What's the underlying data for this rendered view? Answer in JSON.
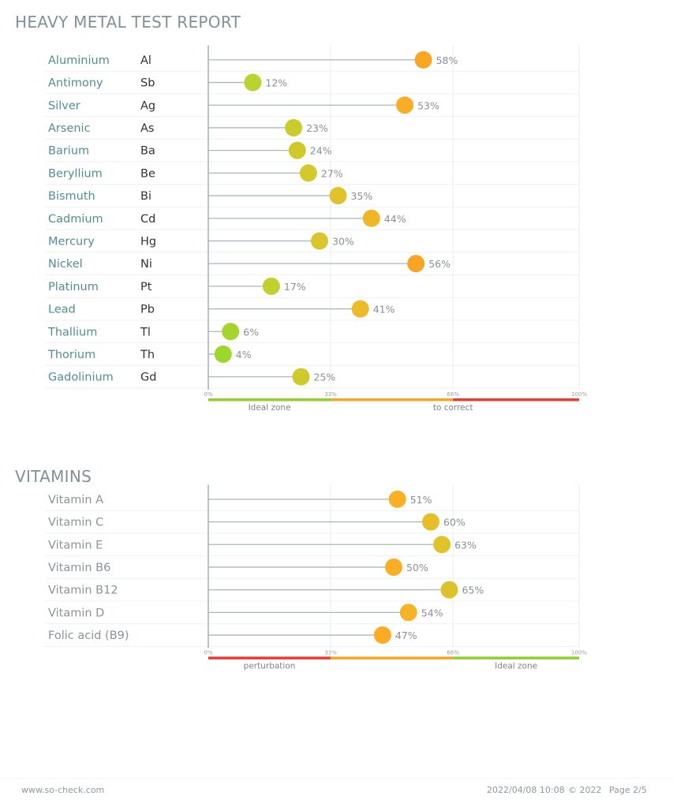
{
  "chart_data": [
    {
      "type": "lollipop",
      "title": "HEAVY METAL TEST REPORT",
      "xlim": [
        0,
        100
      ],
      "ticks": [
        "0%",
        "33%",
        "66%",
        "100%"
      ],
      "zones": [
        {
          "label": "Ideal zone",
          "from": 0,
          "to": 33,
          "color": "#8ed12b"
        },
        {
          "label": "",
          "from": 33,
          "to": 66,
          "color": "#f6a623"
        },
        {
          "label": "to correct",
          "from": 66,
          "to": 100,
          "color": "#ee3a34"
        }
      ],
      "zone_labels": [
        {
          "text": "Ideal zone",
          "at": 16.5
        },
        {
          "text": "to correct",
          "at": 66
        }
      ],
      "rows": [
        {
          "name": "Aluminium",
          "symbol": "Al",
          "value": 58,
          "label": "58%",
          "color": "#f9a623"
        },
        {
          "name": "Antimony",
          "symbol": "Sb",
          "value": 12,
          "label": "12%",
          "color": "#bcd22e"
        },
        {
          "name": "Silver",
          "symbol": "Ag",
          "value": 53,
          "label": "53%",
          "color": "#f9ad25"
        },
        {
          "name": "Arsenic",
          "symbol": "As",
          "value": 23,
          "label": "23%",
          "color": "#cccb2c"
        },
        {
          "name": "Barium",
          "symbol": "Ba",
          "value": 24,
          "label": "24%",
          "color": "#cfca2c"
        },
        {
          "name": "Beryllium",
          "symbol": "Be",
          "value": 27,
          "label": "27%",
          "color": "#d4c92c"
        },
        {
          "name": "Bismuth",
          "symbol": "Bi",
          "value": 35,
          "label": "35%",
          "color": "#e2c22a"
        },
        {
          "name": "Cadmium",
          "symbol": "Cd",
          "value": 44,
          "label": "44%",
          "color": "#f0b626"
        },
        {
          "name": "Mercury",
          "symbol": "Hg",
          "value": 30,
          "label": "30%",
          "color": "#d9c62c"
        },
        {
          "name": "Nickel",
          "symbol": "Ni",
          "value": 56,
          "label": "56%",
          "color": "#fba324"
        },
        {
          "name": "Platinum",
          "symbol": "Pt",
          "value": 17,
          "label": "17%",
          "color": "#c2d02e"
        },
        {
          "name": "Lead",
          "symbol": "Pb",
          "value": 41,
          "label": "41%",
          "color": "#ecbc28"
        },
        {
          "name": "Thallium",
          "symbol": "Tl",
          "value": 6,
          "label": "6%",
          "color": "#a5d42c"
        },
        {
          "name": "Thorium",
          "symbol": "Th",
          "value": 4,
          "label": "4%",
          "color": "#9ed62b"
        },
        {
          "name": "Gadolinium",
          "symbol": "Gd",
          "value": 25,
          "label": "25%",
          "color": "#cfca2c"
        }
      ]
    },
    {
      "type": "lollipop",
      "title": "VITAMINS",
      "xlim": [
        0,
        100
      ],
      "ticks": [
        "0%",
        "33%",
        "66%",
        "100%"
      ],
      "zones": [
        {
          "label": "perturbation",
          "from": 0,
          "to": 33,
          "color": "#ee3a34"
        },
        {
          "label": "",
          "from": 33,
          "to": 66,
          "color": "#f6a623"
        },
        {
          "label": "Ideal zone",
          "from": 66,
          "to": 100,
          "color": "#8ed12b"
        }
      ],
      "zone_labels": [
        {
          "text": "perturbation",
          "at": 16.5
        },
        {
          "text": "Ideal zone",
          "at": 83
        }
      ],
      "rows": [
        {
          "name": "Vitamin A",
          "symbol": "",
          "value": 51,
          "label": "51%",
          "color": "#f9b024"
        },
        {
          "name": "Vitamin C",
          "symbol": "",
          "value": 60,
          "label": "60%",
          "color": "#e6be28"
        },
        {
          "name": "Vitamin E",
          "symbol": "",
          "value": 63,
          "label": "63%",
          "color": "#e0c22a"
        },
        {
          "name": "Vitamin B6",
          "symbol": "",
          "value": 50,
          "label": "50%",
          "color": "#fbae25"
        },
        {
          "name": "Vitamin B12",
          "symbol": "",
          "value": 65,
          "label": "65%",
          "color": "#dcc32b"
        },
        {
          "name": "Vitamin D",
          "symbol": "",
          "value": 54,
          "label": "54%",
          "color": "#f5b426"
        },
        {
          "name": "Folic acid (B9)",
          "symbol": "",
          "value": 47,
          "label": "47%",
          "color": "#fdab24"
        }
      ]
    }
  ],
  "footer": {
    "website": "www.so-check.com",
    "datetime": "2022/04/08 10:08",
    "copyright": "© 2022",
    "page": "Page 2/5"
  }
}
